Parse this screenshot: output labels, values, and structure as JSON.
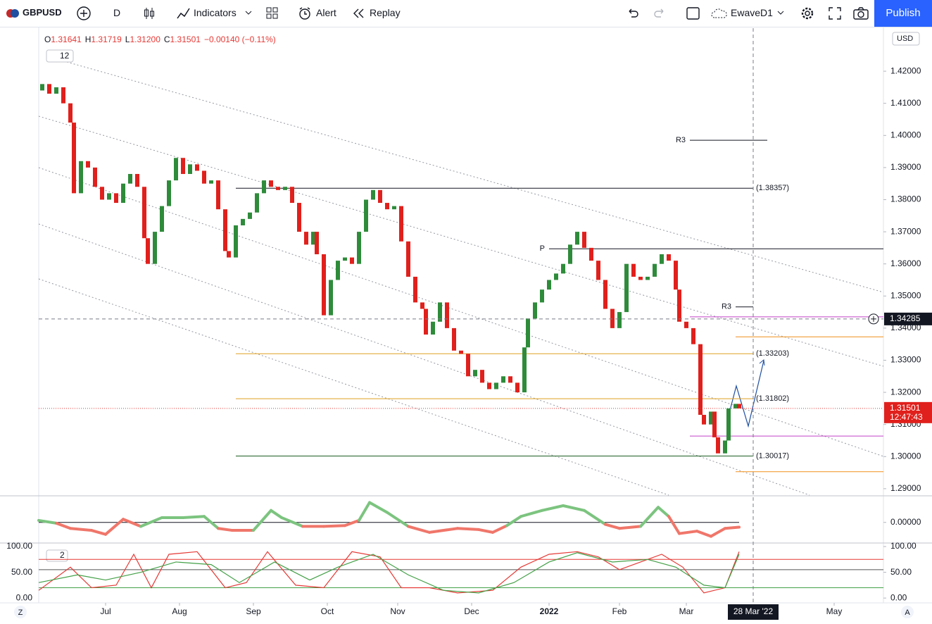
{
  "toolbar": {
    "symbol": "GBPUSD",
    "interval": "D",
    "indicators": "Indicators",
    "alert": "Alert",
    "replay": "Replay",
    "layout": "EwaveD1",
    "publish": "Publish"
  },
  "legend": {
    "ohlc": [
      {
        "key": "O",
        "value": "1.31641"
      },
      {
        "key": "H",
        "value": "1.31719"
      },
      {
        "key": "L",
        "value": "1.31200"
      },
      {
        "key": "C",
        "value": "1.31501"
      }
    ],
    "change": "−0.00140 (−0.11%)",
    "badge": "12"
  },
  "currency": "USD",
  "pane_badge": "2",
  "footer": {
    "left": "Z",
    "right": "A"
  },
  "chart_data": [
    {
      "type": "candlestick",
      "x": [
        1,
        3,
        5,
        7,
        9,
        10,
        12,
        14,
        16,
        18,
        20,
        22,
        24,
        26,
        28,
        30,
        31,
        33,
        35,
        37,
        39,
        41,
        43,
        45,
        47,
        49,
        51,
        53,
        54,
        56,
        58,
        60,
        62,
        64,
        66,
        68,
        70,
        72,
        74,
        76,
        78,
        79,
        81,
        83,
        85,
        87,
        89,
        91,
        93,
        95,
        97,
        99,
        101,
        103,
        105,
        107,
        109,
        110,
        112,
        114,
        116,
        118,
        120,
        122,
        124,
        126,
        128,
        130,
        132,
        134,
        136,
        138,
        139,
        141,
        143,
        145,
        147,
        149,
        151,
        153,
        155,
        157,
        159,
        161,
        163,
        165,
        167,
        169,
        171,
        173,
        175,
        177,
        179,
        181,
        182,
        184,
        186,
        188,
        189,
        191,
        192,
        193,
        195,
        196,
        198,
        199
      ],
      "open": [
        1.414,
        1.416,
        1.413,
        1.415,
        1.41,
        1.404,
        1.382,
        1.392,
        1.39,
        1.384,
        1.38,
        1.382,
        1.379,
        1.385,
        1.388,
        1.384,
        1.368,
        1.36,
        1.37,
        1.378,
        1.386,
        1.393,
        1.388,
        1.391,
        1.389,
        1.385,
        1.386,
        1.377,
        1.364,
        1.362,
        1.372,
        1.374,
        1.376,
        1.382,
        1.386,
        1.384,
        1.383,
        1.384,
        1.379,
        1.37,
        1.366,
        1.37,
        1.363,
        1.344,
        1.355,
        1.361,
        1.362,
        1.36,
        1.37,
        1.38,
        1.383,
        1.379,
        1.377,
        1.378,
        1.367,
        1.356,
        1.348,
        1.346,
        1.338,
        1.342,
        1.348,
        1.34,
        1.333,
        1.332,
        1.325,
        1.327,
        1.323,
        1.321,
        1.323,
        1.325,
        1.323,
        1.32,
        1.334,
        1.343,
        1.348,
        1.352,
        1.355,
        1.357,
        1.36,
        1.366,
        1.37,
        1.365,
        1.361,
        1.355,
        1.346,
        1.34,
        1.345,
        1.36,
        1.356,
        1.355,
        1.356,
        1.36,
        1.363,
        1.361,
        1.352,
        1.342,
        1.34,
        1.335,
        1.313,
        1.31,
        1.314,
        1.306,
        1.301,
        1.305,
        1.315,
        1.31641
      ],
      "close": [
        1.416,
        1.413,
        1.415,
        1.41,
        1.404,
        1.382,
        1.392,
        1.39,
        1.384,
        1.38,
        1.382,
        1.379,
        1.385,
        1.388,
        1.384,
        1.368,
        1.36,
        1.37,
        1.378,
        1.386,
        1.393,
        1.388,
        1.391,
        1.389,
        1.385,
        1.386,
        1.377,
        1.364,
        1.362,
        1.372,
        1.374,
        1.376,
        1.382,
        1.386,
        1.384,
        1.383,
        1.384,
        1.379,
        1.37,
        1.366,
        1.37,
        1.363,
        1.344,
        1.355,
        1.361,
        1.362,
        1.36,
        1.37,
        1.38,
        1.383,
        1.379,
        1.377,
        1.378,
        1.367,
        1.356,
        1.348,
        1.346,
        1.338,
        1.342,
        1.348,
        1.34,
        1.333,
        1.332,
        1.325,
        1.327,
        1.323,
        1.321,
        1.323,
        1.325,
        1.323,
        1.32,
        1.334,
        1.343,
        1.348,
        1.352,
        1.355,
        1.357,
        1.36,
        1.366,
        1.37,
        1.365,
        1.361,
        1.355,
        1.346,
        1.34,
        1.345,
        1.36,
        1.356,
        1.355,
        1.356,
        1.36,
        1.363,
        1.361,
        1.352,
        1.342,
        1.34,
        1.335,
        1.313,
        1.31,
        1.314,
        1.306,
        1.301,
        1.305,
        1.315,
        1.31641,
        1.31501
      ],
      "up_color": "#2e8b3a",
      "down_color": "#e0201c",
      "xlim": [
        0,
        240
      ],
      "ylim": [
        1.288,
        1.4334
      ],
      "xticks": [
        {
          "value": 19,
          "label": "Jul"
        },
        {
          "value": 40,
          "label": "Aug"
        },
        {
          "value": 61,
          "label": "Sep"
        },
        {
          "value": 82,
          "label": "Oct"
        },
        {
          "value": 102,
          "label": "Nov"
        },
        {
          "value": 123,
          "label": "Dec"
        },
        {
          "value": 145,
          "label": "2022"
        },
        {
          "value": 165,
          "label": "Feb"
        },
        {
          "value": 184,
          "label": "Mar"
        },
        {
          "value": 226,
          "label": "May"
        }
      ],
      "yticks": [
        {
          "value": 1.29,
          "label": "1.29000"
        },
        {
          "value": 1.3,
          "label": "1.30000"
        },
        {
          "value": 1.31,
          "label": "1.31000"
        },
        {
          "value": 1.32,
          "label": "1.32000"
        },
        {
          "value": 1.33,
          "label": "1.33000"
        },
        {
          "value": 1.34,
          "label": "1.34000"
        },
        {
          "value": 1.35,
          "label": "1.35000"
        },
        {
          "value": 1.36,
          "label": "1.36000"
        },
        {
          "value": 1.37,
          "label": "1.37000"
        },
        {
          "value": 1.38,
          "label": "1.38000"
        },
        {
          "value": 1.39,
          "label": "1.39000"
        },
        {
          "value": 1.4,
          "label": "1.40000"
        },
        {
          "value": 1.41,
          "label": "1.41000"
        },
        {
          "value": 1.42,
          "label": "1.42000"
        }
      ],
      "grid": false,
      "levels": [
        {
          "value": 1.3985,
          "x": [
            185,
            207
          ],
          "color": "#131722",
          "label": "R3",
          "label_side": "left"
        },
        {
          "value": 1.38357,
          "x": [
            56,
            203
          ],
          "color": "#131722",
          "label": "(1.38357)",
          "label_side": "right"
        },
        {
          "value": 1.3647,
          "x": [
            145,
            240
          ],
          "color": "#131722",
          "label": "P",
          "label_side": "left"
        },
        {
          "value": 1.3466,
          "x": [
            198,
            203
          ],
          "color": "#131722",
          "label": "R3",
          "label_side": "left"
        },
        {
          "value": 1.3435,
          "x": [
            185,
            240
          ],
          "color": "#c040c8"
        },
        {
          "value": 1.3373,
          "x": [
            198,
            240
          ],
          "color": "#f0901a"
        },
        {
          "value": 1.33203,
          "x": [
            56,
            203
          ],
          "color": "#e0a020",
          "label": "(1.33203)",
          "label_side": "right"
        },
        {
          "value": 1.31802,
          "x": [
            56,
            203
          ],
          "color": "#e0a020",
          "label": "(1.31802)",
          "label_side": "right"
        },
        {
          "value": 1.3064,
          "x": [
            185,
            240
          ],
          "color": "#c040c8"
        },
        {
          "value": 1.30017,
          "x": [
            56,
            203
          ],
          "color": "#1b5e20",
          "label": "(1.30017)",
          "label_side": "right"
        },
        {
          "value": 1.2953,
          "x": [
            198,
            240
          ],
          "color": "#f0901a"
        }
      ],
      "crosshair_price": 1.34285,
      "crosshair_x": {
        "value": 203,
        "label": "28 Mar '22"
      },
      "last_price": 1.31501,
      "countdown": "12:47:43"
    },
    {
      "type": "line",
      "x": [
        0,
        5,
        9,
        15,
        19,
        24,
        29,
        35,
        41,
        47,
        51,
        55,
        61,
        66,
        69,
        75,
        81,
        87,
        91,
        94,
        99,
        105,
        111,
        119,
        125,
        129,
        133,
        137,
        143,
        149,
        155,
        161,
        165,
        171,
        176,
        179,
        182,
        187,
        191,
        195,
        199
      ],
      "values": [
        0.0005,
        -0.0002,
        -0.0015,
        -0.002,
        -0.003,
        0.0008,
        -0.001,
        0.0012,
        0.0012,
        0.0015,
        -0.0015,
        -0.002,
        -0.002,
        0.003,
        0.0012,
        -0.001,
        -0.001,
        -0.0008,
        0.0005,
        0.005,
        0.0025,
        -0.001,
        -0.0025,
        -0.0015,
        -0.0018,
        -0.0025,
        -0.0008,
        0.0015,
        0.003,
        0.0042,
        0.003,
        -0.0005,
        -0.0015,
        -0.001,
        0.0038,
        0.0015,
        -0.0028,
        -0.0022,
        -0.0035,
        -0.0015,
        -0.0012
      ],
      "up_color": "#7cc47f",
      "down_color": "#f0766a",
      "xlim": [
        0,
        240
      ],
      "ylim": [
        -0.005,
        0.0065
      ],
      "yticks": [
        {
          "value": 0,
          "label": "0.00000"
        }
      ],
      "levels": [
        {
          "value": 0,
          "x": [
            0,
            199
          ],
          "color": "#131722"
        }
      ]
    },
    {
      "type": "line",
      "series": [
        {
          "color": "#e53935",
          "x": [
            0,
            9,
            15,
            22,
            27,
            32,
            37,
            45,
            53,
            59,
            65,
            73,
            81,
            89,
            97,
            103,
            111,
            119,
            129,
            137,
            145,
            153,
            159,
            165,
            171,
            177,
            183,
            189,
            195,
            199
          ],
          "values": [
            15,
            60,
            20,
            25,
            85,
            20,
            85,
            90,
            20,
            30,
            90,
            25,
            20,
            90,
            80,
            20,
            20,
            10,
            15,
            60,
            85,
            90,
            80,
            55,
            70,
            85,
            60,
            10,
            20,
            90
          ]
        },
        {
          "color": "#43a047",
          "x": [
            0,
            11,
            19,
            29,
            39,
            49,
            57,
            67,
            77,
            85,
            95,
            105,
            115,
            125,
            135,
            145,
            153,
            163,
            173,
            181,
            189,
            195,
            199
          ],
          "values": [
            30,
            45,
            35,
            50,
            70,
            65,
            30,
            70,
            35,
            60,
            85,
            45,
            15,
            10,
            30,
            70,
            88,
            70,
            75,
            60,
            25,
            20,
            85
          ]
        }
      ],
      "xlim": [
        0,
        240
      ],
      "ylim": [
        -8,
        105.5
      ],
      "yticks": [
        {
          "value": 0,
          "label": "0.00"
        },
        {
          "value": 50,
          "label": "50.00"
        },
        {
          "value": 100,
          "label": "100.00"
        }
      ],
      "left_ticks": true,
      "levels": [
        {
          "value": 75,
          "x": [
            0,
            240
          ],
          "color": "#e53935"
        },
        {
          "value": 55,
          "x": [
            0,
            240
          ],
          "color": "#555"
        },
        {
          "value": 20,
          "x": [
            0,
            240
          ],
          "color": "#43a047"
        }
      ]
    }
  ]
}
